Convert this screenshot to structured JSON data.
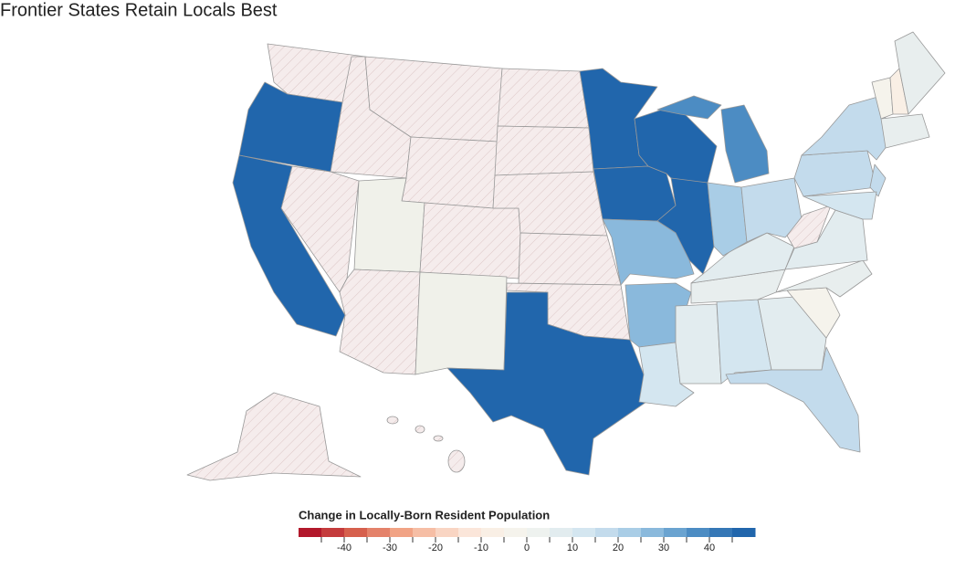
{
  "title": "Frontier States Retain Locals Best",
  "legend": {
    "title": "Change in Locally-Born Resident Population",
    "xlim": [
      -50,
      50
    ],
    "xticks": [
      -40,
      -30,
      -20,
      -10,
      0,
      10,
      20,
      30,
      40
    ],
    "colors": [
      "#b2182b",
      "#c43b3c",
      "#d6604d",
      "#e4826a",
      "#f1a385",
      "#f6bea5",
      "#f9d5c3",
      "#fbe6da",
      "#f9efe5",
      "#f5f3ec",
      "#eef2ef",
      "#e2ecef",
      "#d4e6f0",
      "#c3dbec",
      "#a9cde6",
      "#8ab9dc",
      "#6aa3d0",
      "#4c8cc3",
      "#3577b6",
      "#2166ac"
    ]
  }
}
